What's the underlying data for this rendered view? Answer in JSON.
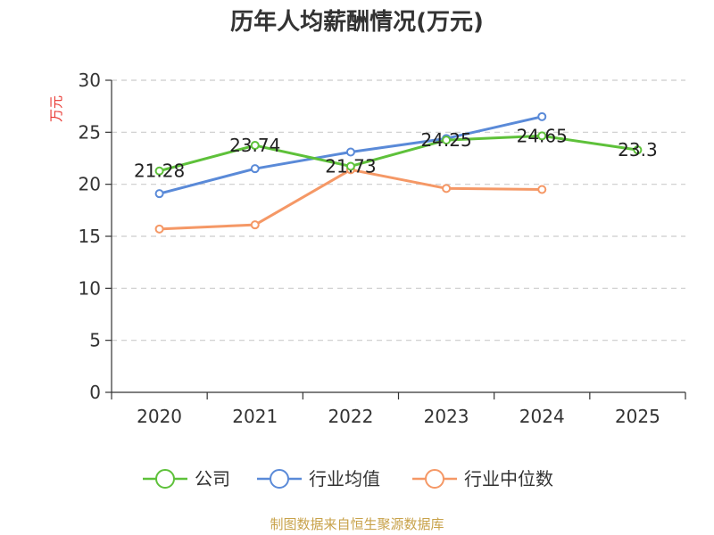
{
  "chart_data": {
    "type": "line",
    "title": "历年人均薪酬情况(万元)",
    "ylabel": "万元",
    "xlabel": "",
    "ylim": [
      0,
      30
    ],
    "yticks": [
      0,
      5,
      10,
      15,
      20,
      25,
      30
    ],
    "categories": [
      "2020",
      "2021",
      "2022",
      "2023",
      "2024",
      "2025"
    ],
    "grid": true,
    "legend_position": "bottom",
    "series": [
      {
        "name": "公司",
        "color": "#5ec13a",
        "values": [
          21.28,
          23.74,
          21.73,
          24.25,
          24.65,
          23.3
        ],
        "labels": [
          "21.28",
          "23.74",
          "21.73",
          "24.25",
          "24.65",
          "23.3"
        ]
      },
      {
        "name": "行业均值",
        "color": "#5a8ad8",
        "values": [
          19.1,
          21.5,
          23.1,
          24.4,
          26.5,
          null
        ],
        "labels": []
      },
      {
        "name": "行业中位数",
        "color": "#f59866",
        "values": [
          15.7,
          16.1,
          21.4,
          19.6,
          19.5,
          null
        ],
        "labels": []
      }
    ],
    "source_text": "制图数据来自恒生聚源数据库"
  }
}
